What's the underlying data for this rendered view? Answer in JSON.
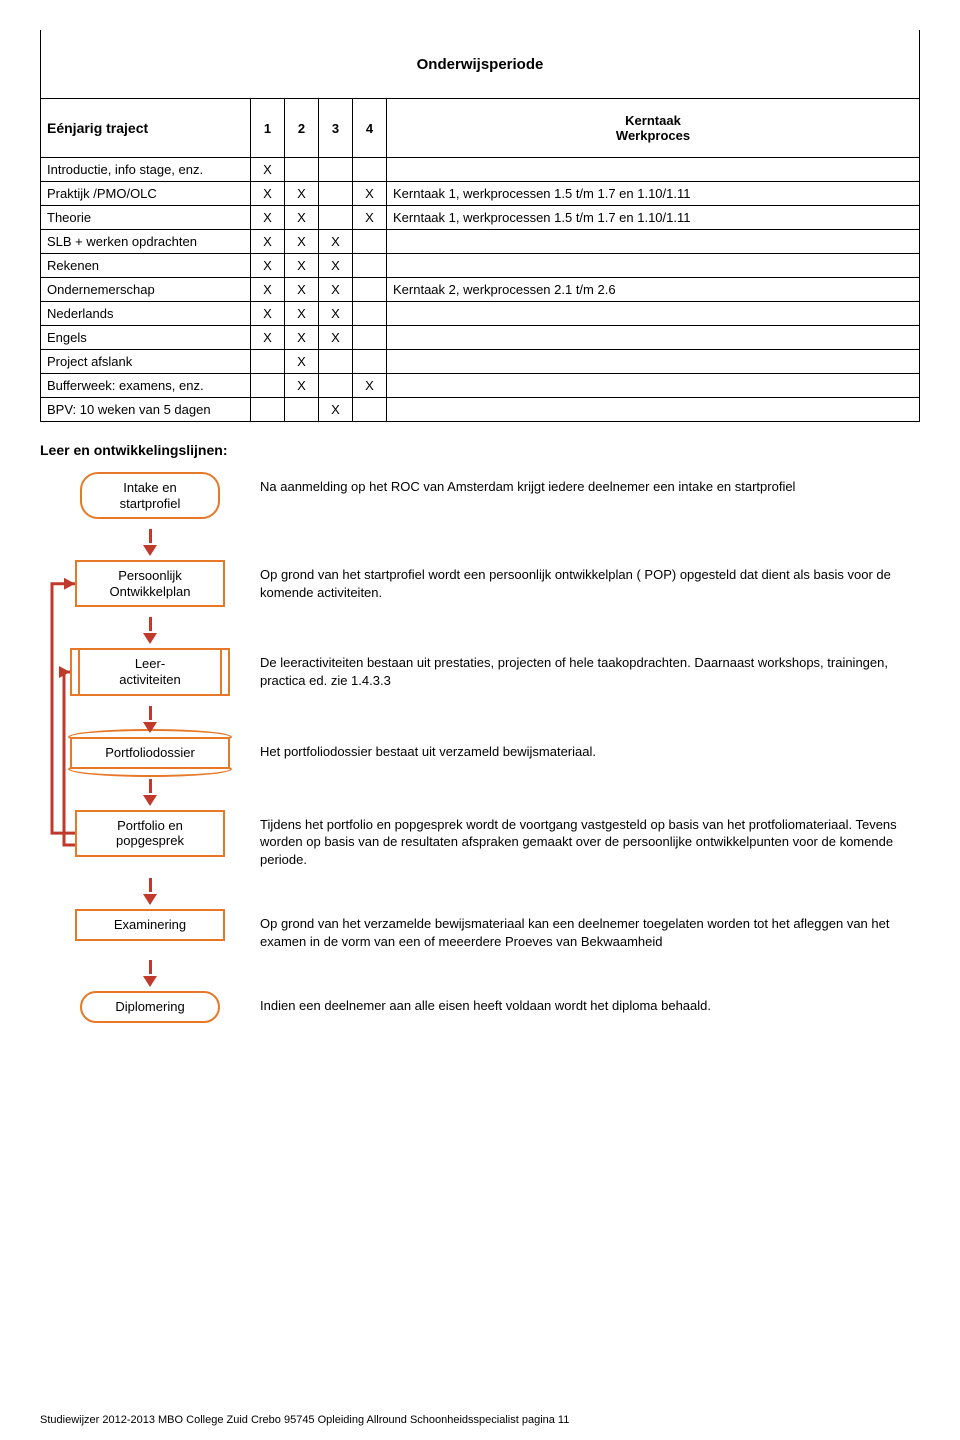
{
  "table": {
    "title": "Onderwijsperiode",
    "col_label": "Eénjarig traject",
    "periods": [
      "1",
      "2",
      "3",
      "4"
    ],
    "kern_header": "Kerntaak\nWerkproces",
    "rows": [
      {
        "label": "Introductie, info stage, enz.",
        "x": [
          "X",
          "",
          "",
          ""
        ],
        "desc": ""
      },
      {
        "label": "Praktijk /PMO/OLC",
        "x": [
          "X",
          "X",
          "",
          "X"
        ],
        "desc": "Kerntaak 1, werkprocessen 1.5 t/m 1.7 en 1.10/1.11"
      },
      {
        "label": "Theorie",
        "x": [
          "X",
          "X",
          "",
          "X"
        ],
        "desc": "Kerntaak 1, werkprocessen 1.5 t/m 1.7 en 1.10/1.11"
      },
      {
        "label": "SLB + werken opdrachten",
        "x": [
          "X",
          "X",
          "X",
          ""
        ],
        "desc": ""
      },
      {
        "label": "Rekenen",
        "x": [
          "X",
          "X",
          "X",
          ""
        ],
        "desc": ""
      },
      {
        "label": "Ondernemerschap",
        "x": [
          "X",
          "X",
          "X",
          ""
        ],
        "desc": "Kerntaak 2, werkprocessen 2.1 t/m 2.6"
      },
      {
        "label": "Nederlands",
        "x": [
          "X",
          "X",
          "X",
          ""
        ],
        "desc": ""
      },
      {
        "label": "Engels",
        "x": [
          "X",
          "X",
          "X",
          ""
        ],
        "desc": ""
      },
      {
        "label": "Project  afslank",
        "x": [
          "",
          "X",
          "",
          ""
        ],
        "desc": ""
      },
      {
        "label": "Bufferweek: examens, enz.",
        "x": [
          "",
          "X",
          "",
          "X"
        ],
        "desc": ""
      },
      {
        "label": "BPV: 10 weken van 5 dagen",
        "x": [
          "",
          "",
          "X",
          ""
        ],
        "desc": ""
      }
    ]
  },
  "section_heading": "Leer en ontwikkelingslijnen:",
  "flow": {
    "border_color": "#e77828",
    "arrow_color": "#c0392b",
    "steps": [
      {
        "type": "terminator",
        "label": "Intake en\nstartprofiel",
        "desc": "Na aanmelding op het ROC van Amsterdam krijgt iedere deelnemer een intake en startprofiel"
      },
      {
        "type": "process",
        "label": "Persoonlijk\nOntwikkelplan",
        "desc": "Op grond van het startprofiel wordt een persoonlijk ontwikkelplan ( POP) opgesteld dat dient als basis voor de komende activiteiten."
      },
      {
        "type": "predef",
        "label": "Leer-\nactiviteiten",
        "desc": "De leeractiviteiten bestaan uit prestaties, projecten of hele taakopdrachten. Daarnaast workshops, trainingen, practica ed. zie 1.4.3.3"
      },
      {
        "type": "storage",
        "label": "Portfoliodossier",
        "desc": "Het portfoliodossier bestaat uit verzameld bewijsmateriaal."
      },
      {
        "type": "process",
        "label": "Portfolio en\npopgesprek",
        "desc": "Tijdens het portfolio en popgesprek wordt de voortgang vastgesteld op basis van het protfoliomateriaal. Tevens worden op basis van de resultaten afspraken gemaakt over de persoonlijke ontwikkelpunten voor de komende periode."
      },
      {
        "type": "process",
        "label": "Examinering",
        "desc": "Op grond van het verzamelde bewijsmateriaal kan een deelnemer toegelaten worden tot het afleggen van het examen in de vorm van een of meeerdere Proeves van Bekwaamheid"
      },
      {
        "type": "terminator",
        "label": "Diplomering",
        "desc": "Indien een deelnemer aan alle eisen heeft voldaan wordt het diploma behaald."
      }
    ]
  },
  "footer": "Studiewijzer 2012-2013  MBO College Zuid Crebo 95745 Opleiding Allround Schoonheidsspecialist pagina 11"
}
